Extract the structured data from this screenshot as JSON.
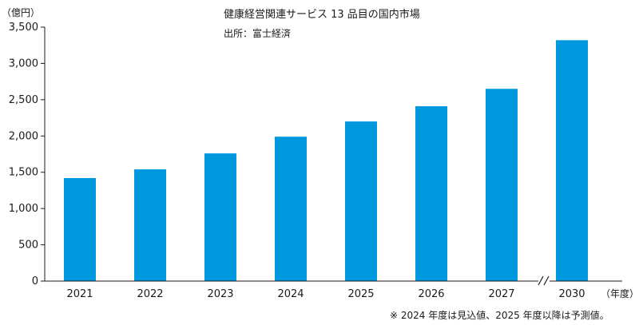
{
  "chart_data": {
    "type": "bar",
    "title": "健康経営関連サービス 13 品目の国内市場",
    "source": "出所：富士経済",
    "ylabel": "（億円）",
    "xlabel": "（年度）",
    "footnote": "※ 2024 年度は見込値、2025 年度以降は予測値。",
    "categories": [
      "2021",
      "2022",
      "2023",
      "2024",
      "2025",
      "2026",
      "2027",
      "2030"
    ],
    "values": [
      1420,
      1540,
      1760,
      1990,
      2200,
      2410,
      2650,
      3320
    ],
    "ylim": [
      0,
      3500
    ],
    "yticks": [
      0,
      500,
      1000,
      1500,
      2000,
      2500,
      3000,
      3500
    ],
    "ytick_labels": [
      "0",
      "500",
      "1,000",
      "1,500",
      "2,000",
      "2,500",
      "3,000",
      "3,500"
    ],
    "axis_break_before": "2030",
    "bar_color": "#0099e0",
    "grid": false,
    "legend": "none"
  }
}
